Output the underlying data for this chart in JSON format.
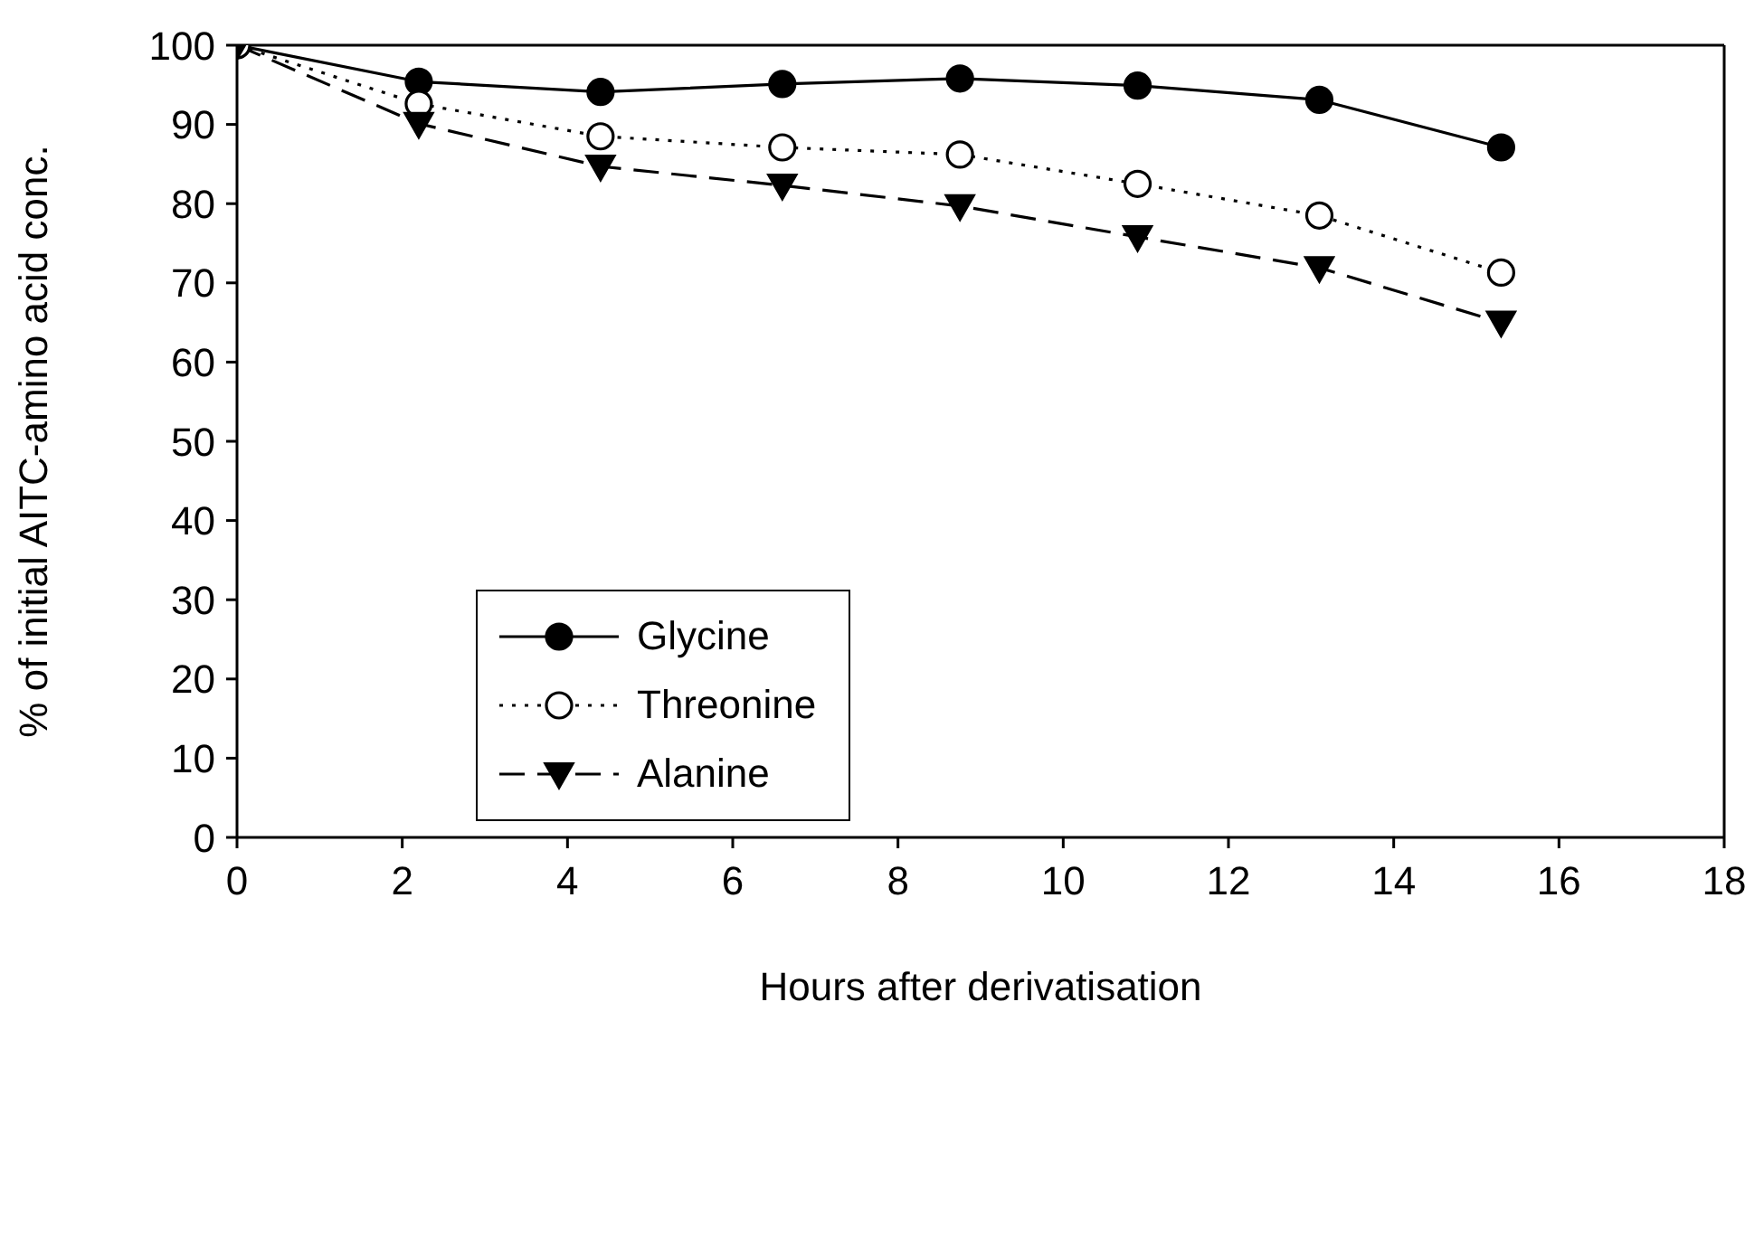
{
  "chart_data": {
    "type": "line",
    "xlabel": "Hours after derivatisation",
    "ylabel": "% of initial AITC-amino acid conc.",
    "x": [
      0,
      2.2,
      4.4,
      6.6,
      8.75,
      10.9,
      13.1,
      15.3
    ],
    "xlim": [
      0,
      18
    ],
    "xticks": [
      0,
      2,
      4,
      6,
      8,
      10,
      12,
      14,
      16,
      18
    ],
    "ylim": [
      0,
      100
    ],
    "yticks": [
      0,
      10,
      20,
      30,
      40,
      50,
      60,
      70,
      80,
      90,
      100
    ],
    "grid": false,
    "legend": "left",
    "series": [
      {
        "name": "Glycine",
        "color": "#000000",
        "marker": "circle",
        "line_style": "solid",
        "values": [
          100,
          95.4,
          94.1,
          95.1,
          95.8,
          94.9,
          93.1,
          87.1
        ]
      },
      {
        "name": "Threonine",
        "color": "#000000",
        "marker": "circle",
        "line_style": "dotted",
        "values": [
          100,
          92.6,
          88.5,
          87.1,
          86.2,
          82.5,
          78.5,
          71.3
        ]
      },
      {
        "name": "Alanine",
        "color": "#000000",
        "marker": "triangle",
        "line_style": "dashed",
        "values": [
          100,
          90.1,
          84.7,
          82.3,
          79.7,
          75.8,
          71.9,
          65.0
        ]
      }
    ]
  }
}
